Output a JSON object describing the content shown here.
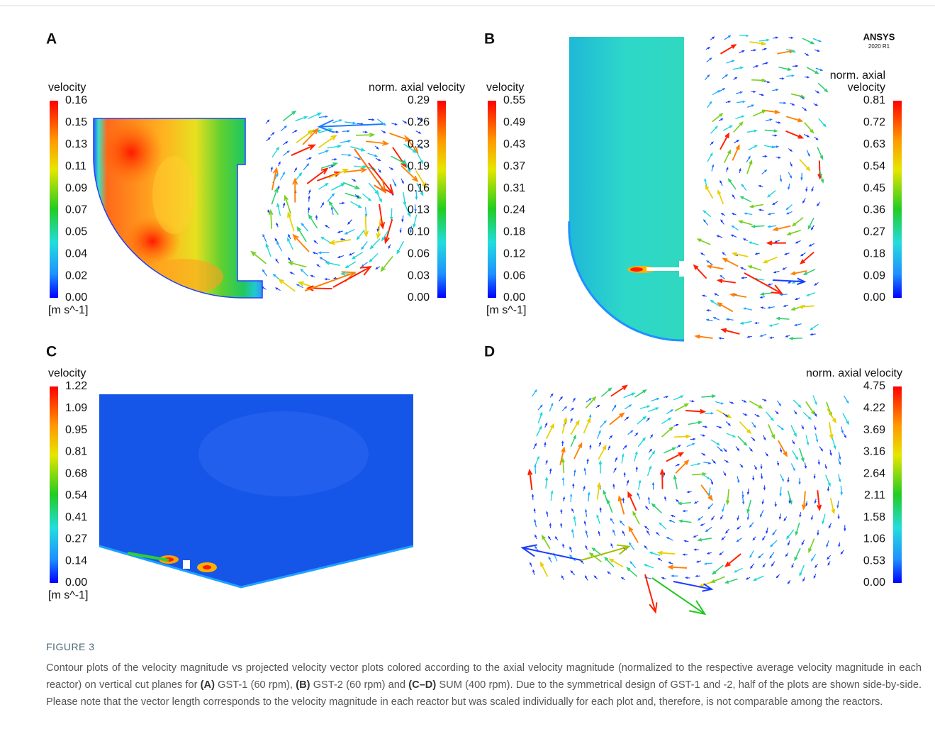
{
  "panels": [
    {
      "label": "A",
      "left_colorbar": {
        "title": "velocity",
        "ticks": [
          "0.16",
          "0.15",
          "0.13",
          "0.11",
          "0.09",
          "0.07",
          "0.05",
          "0.04",
          "0.02",
          "0.00"
        ],
        "unit": "[m s^-1]"
      },
      "right_colorbar": {
        "title": "norm. axial velocity",
        "ticks": [
          "0.29",
          "0.26",
          "0.23",
          "0.19",
          "0.16",
          "0.13",
          "0.10",
          "0.06",
          "0.03",
          "0.00"
        ]
      }
    },
    {
      "label": "B",
      "left_colorbar": {
        "title": "velocity",
        "ticks": [
          "0.55",
          "0.49",
          "0.43",
          "0.37",
          "0.31",
          "0.24",
          "0.18",
          "0.12",
          "0.06",
          "0.00"
        ],
        "unit": "[m s^-1]"
      },
      "right_colorbar": {
        "title": [
          "norm. axial",
          "velocity"
        ],
        "ticks": [
          "0.81",
          "0.72",
          "0.63",
          "0.54",
          "0.45",
          "0.36",
          "0.27",
          "0.18",
          "0.09",
          "0.00"
        ]
      },
      "logo": {
        "name": "ANSYS",
        "version": "2020 R1"
      }
    },
    {
      "label": "C",
      "left_colorbar": {
        "title": "velocity",
        "ticks": [
          "1.22",
          "1.09",
          "0.95",
          "0.81",
          "0.68",
          "0.54",
          "0.41",
          "0.27",
          "0.14",
          "0.00"
        ],
        "unit": "[m s^-1]"
      }
    },
    {
      "label": "D",
      "right_colorbar": {
        "title": "norm. axial velocity",
        "ticks": [
          "4.75",
          "4.22",
          "3.69",
          "3.16",
          "2.64",
          "2.11",
          "1.58",
          "1.06",
          "0.53",
          "0.00"
        ]
      }
    }
  ],
  "caption": {
    "label": "FIGURE 3",
    "parts": [
      "Contour plots of the velocity magnitude vs projected velocity vector plots colored according to the axial velocity magnitude (normalized to the respective average velocity magnitude in each reactor) on vertical cut planes for ",
      "(A)",
      " GST-1 (60 rpm), ",
      "(B)",
      " GST-2 (60 rpm) and ",
      "(C–D)",
      " SUM (400 rpm). Due to the symmetrical design of GST-1 and -2, half of the plots are shown side-by-side. Please note that the vector length corresponds to the velocity magnitude in each reactor but was scaled individually for each plot and, therefore, is not comparable among the reactors."
    ]
  }
}
